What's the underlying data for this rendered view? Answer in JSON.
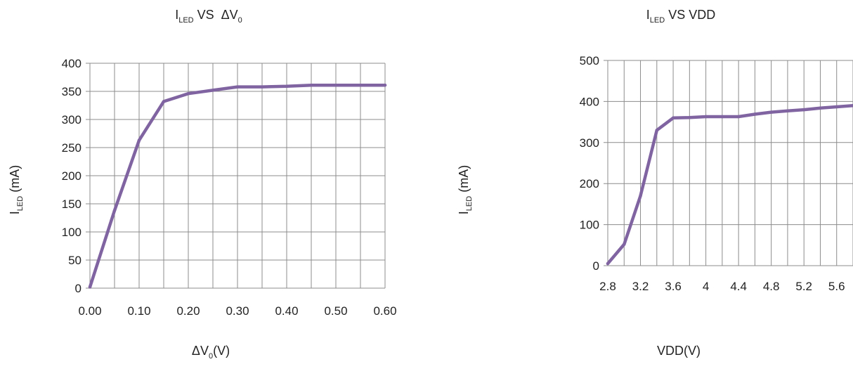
{
  "charts": {
    "left": {
      "title": {
        "main": "I",
        "sub": "LED",
        "rest": " VS  ΔV",
        "sub2": "0"
      },
      "ylabel": {
        "main": "I",
        "sub": "LED",
        "rest": " (mA)"
      },
      "xlabel": {
        "main": "ΔV",
        "sub": "0",
        "rest": "(V)"
      },
      "line_color": "#8064A2"
    },
    "right": {
      "title": {
        "main": "I",
        "sub": "LED",
        "rest": " VS VDD"
      },
      "ylabel": {
        "main": "I",
        "sub": "LED",
        "rest": " (mA)"
      },
      "xlabel": {
        "main": "VDD(V)"
      },
      "line_color": "#8064A2"
    }
  },
  "chart_data": [
    {
      "type": "line",
      "title": "ILED VS ΔV0",
      "xlabel": "ΔV0(V)",
      "ylabel": "ILED (mA)",
      "xlim": [
        0,
        0.6
      ],
      "ylim": [
        0,
        400
      ],
      "x_ticks": [
        "0.00",
        "0.10",
        "0.20",
        "0.30",
        "0.40",
        "0.50",
        "0.60"
      ],
      "y_ticks": [
        "0",
        "50",
        "100",
        "150",
        "200",
        "250",
        "300",
        "350",
        "400"
      ],
      "grid": true,
      "x": [
        0.0,
        0.05,
        0.1,
        0.15,
        0.2,
        0.25,
        0.3,
        0.35,
        0.4,
        0.45,
        0.5,
        0.55,
        0.6
      ],
      "y": [
        2,
        138,
        263,
        332,
        346,
        352,
        358,
        358,
        359,
        361,
        361,
        361,
        361
      ]
    },
    {
      "type": "line",
      "title": "ILED VS VDD",
      "xlabel": "VDD(V)",
      "ylabel": "ILED (mA)",
      "xlim": [
        2.8,
        5.8
      ],
      "ylim": [
        0,
        500
      ],
      "x_ticks": [
        "2.8",
        "3.2",
        "3.6",
        "4",
        "4.4",
        "4.8",
        "5.2",
        "5.6"
      ],
      "y_ticks": [
        "0",
        "100",
        "200",
        "300",
        "400",
        "500"
      ],
      "grid": true,
      "x": [
        2.8,
        3.0,
        3.2,
        3.4,
        3.6,
        3.8,
        4.0,
        4.2,
        4.4,
        4.6,
        4.8,
        5.0,
        5.2,
        5.4,
        5.6,
        5.8
      ],
      "y": [
        5,
        52,
        170,
        330,
        360,
        361,
        363,
        363,
        363,
        369,
        374,
        377,
        380,
        384,
        387,
        390
      ]
    }
  ]
}
